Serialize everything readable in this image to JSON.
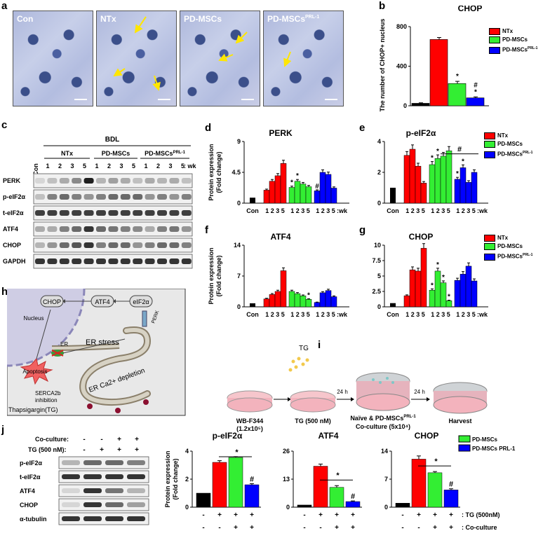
{
  "panels": {
    "a": "a",
    "b": "b",
    "c": "c",
    "d": "d",
    "e": "e",
    "f": "f",
    "g": "g",
    "h": "h",
    "i": "i",
    "j": "j"
  },
  "micro": {
    "labels": [
      "Con",
      "NTx",
      "PD-MSCs",
      "PD-MSCs"
    ],
    "sup": "PRL-1"
  },
  "legend": {
    "ntx": "NTx",
    "pd": "PD-MSCs",
    "prl": "PD-MSCs",
    "sup": "PRL-1"
  },
  "colors": {
    "con": "#000000",
    "ntx": "#ff0000",
    "pd": "#33ee33",
    "prl": "#0000ff"
  },
  "blot_c": {
    "bdl": "BDL",
    "groups": [
      "NTx",
      "PD-MSCs",
      "PD-MSCs"
    ],
    "sup": "PRL-1",
    "con": "Con",
    "weeks": [
      "1",
      "2",
      "3",
      "5",
      "1",
      "2",
      "3",
      "5",
      "1",
      "2",
      "3",
      "5"
    ],
    "wk": ": wk",
    "rows": [
      "PERK",
      "p-eIF2α",
      "t-eIF2α",
      "ATF4",
      "CHOP",
      "GAPDH"
    ]
  },
  "pathway": {
    "chop": "CHOP",
    "atf4": "ATF4",
    "eif2a": "eIF2α",
    "nucleus": "Nucleus",
    "perk": "PERK",
    "apoptosis": "Apoptosis",
    "er": "ER",
    "er_stress": "ER stress",
    "ca": "ER Ca2+ depletion",
    "serca": "SERCA2b",
    "inhibition": "inhibition",
    "tg": "Thapsigargin(TG)"
  },
  "scheme": {
    "tg": "TG",
    "h1": "24 h",
    "h2": "24 h",
    "s1a": "WB-F344",
    "s1b": "(1.2x10⁵)",
    "s2": "TG (500 nM)",
    "s3a": "Naïve & PD-MSCs",
    "s3sup": "PRL-1",
    "s3b": "Co-culture (5x10⁴)",
    "s4": "Harvest"
  },
  "blot_j": {
    "co": "Co-culture:",
    "tg": "TG (500 nM):",
    "co_signs": [
      "-",
      "-",
      "+",
      "+"
    ],
    "tg_signs": [
      "-",
      "+",
      "+",
      "+"
    ],
    "rows": [
      "p-eIF2α",
      "t-eIF2α",
      "ATF4",
      "CHOP",
      "α-tubulin"
    ]
  },
  "chart_data": [
    {
      "id": "b",
      "type": "bar",
      "title": "CHOP",
      "ylabel": "The number of CHOP+ nucleus",
      "ylim": [
        0,
        800
      ],
      "yticks": [
        "0",
        "400",
        "800"
      ],
      "categories": [
        "Con",
        "NTx",
        "PD-MSCs",
        "PD-MSCs PRL-1"
      ],
      "values": [
        25,
        670,
        225,
        80
      ],
      "errors": [
        5,
        20,
        22,
        10
      ],
      "annotations": [
        "",
        "",
        "*",
        "#\n*"
      ]
    },
    {
      "id": "d",
      "type": "bar",
      "title": "PERK",
      "ylabel": "Protein expression (Fold change)",
      "ylim": [
        0,
        9
      ],
      "yticks": [
        "0",
        "4.5",
        "9"
      ],
      "xlabels": [
        "Con",
        "1 2 3 5",
        "1 2 3 5",
        "1 2 3 5 : wk"
      ],
      "series": [
        {
          "name": "Con",
          "values": [
            0.8
          ]
        },
        {
          "name": "NTx",
          "values": [
            1.9,
            3.2,
            4.0,
            5.8
          ]
        },
        {
          "name": "PD-MSCs",
          "values": [
            2.3,
            3.2,
            2.8,
            2.4
          ]
        },
        {
          "name": "PD-MSCs PRL-1",
          "values": [
            1.8,
            4.5,
            4.2,
            2.2
          ]
        }
      ],
      "marks": {
        "pd": [
          "*",
          "*",
          "",
          ""
        ],
        "prl": [
          "#",
          "",
          "",
          ""
        ]
      }
    },
    {
      "id": "e",
      "type": "bar",
      "title": "p-eIF2α",
      "ylim": [
        0,
        4
      ],
      "yticks": [
        "0",
        "2",
        "4"
      ],
      "series": [
        {
          "name": "Con",
          "values": [
            1.0
          ]
        },
        {
          "name": "NTx",
          "values": [
            3.1,
            3.5,
            2.4,
            1.3
          ]
        },
        {
          "name": "PD-MSCs",
          "values": [
            2.5,
            2.9,
            3.05,
            3.4
          ]
        },
        {
          "name": "PD-MSCs PRL-1",
          "values": [
            1.55,
            2.3,
            1.35,
            2.0
          ]
        }
      ],
      "marks": {
        "pd": [
          "*",
          "*",
          "",
          ""
        ],
        "prl": [
          "*",
          "*",
          "",
          ""
        ]
      },
      "bracket": "#"
    },
    {
      "id": "f",
      "type": "bar",
      "title": "ATF4",
      "ylabel": "Protein expression (Fold change)",
      "ylim": [
        0,
        14
      ],
      "yticks": [
        "0",
        "7",
        "14"
      ],
      "series": [
        {
          "name": "Con",
          "values": [
            0.8
          ]
        },
        {
          "name": "NTx",
          "values": [
            1.8,
            2.8,
            3.5,
            8.2
          ]
        },
        {
          "name": "PD-MSCs",
          "values": [
            3.5,
            3.0,
            2.5,
            1.7
          ]
        },
        {
          "name": "PD-MSCs PRL-1",
          "values": [
            1.0,
            3.2,
            3.7,
            2.3
          ]
        }
      ],
      "marks": {
        "pd": [
          "",
          "",
          "",
          "*"
        ],
        "prl": [
          "",
          "",
          "",
          ""
        ]
      }
    },
    {
      "id": "g",
      "type": "bar",
      "title": "CHOP",
      "ylim": [
        0,
        10
      ],
      "yticks": [
        "0",
        "2.5",
        "5",
        "7.5",
        "10"
      ],
      "series": [
        {
          "name": "Con",
          "values": [
            0.6
          ]
        },
        {
          "name": "NTx",
          "values": [
            1.8,
            6.0,
            5.8,
            9.5
          ]
        },
        {
          "name": "PD-MSCs",
          "values": [
            2.7,
            5.8,
            3.9,
            1.0
          ]
        },
        {
          "name": "PD-MSCs PRL-1",
          "values": [
            4.3,
            5.3,
            6.6,
            4.2
          ]
        }
      ],
      "marks": {
        "pd": [
          "*",
          "*",
          "*",
          "*"
        ],
        "prl": [
          "",
          "",
          "",
          ""
        ]
      }
    },
    {
      "id": "j1",
      "type": "bar",
      "title": "p-eIF2α",
      "ylabel": "Protein expression (Fold change)",
      "ylim": [
        0,
        4
      ],
      "yticks": [
        "0",
        "2",
        "4"
      ],
      "values": [
        1.0,
        3.2,
        3.55,
        1.6
      ],
      "errors": [
        0,
        0.12,
        0.06,
        0.08
      ],
      "marks": [
        "",
        "",
        "",
        "#"
      ],
      "bracket": "*"
    },
    {
      "id": "j2",
      "type": "bar",
      "title": "ATF4",
      "ylim": [
        0,
        26
      ],
      "yticks": [
        "0",
        "13",
        "26"
      ],
      "values": [
        1.0,
        19.0,
        9.2,
        2.6
      ],
      "errors": [
        0,
        1.0,
        0.8,
        0.3
      ],
      "marks": [
        "",
        "",
        "",
        "#"
      ],
      "bracket": "*"
    },
    {
      "id": "j3",
      "type": "bar",
      "title": "CHOP",
      "ylim": [
        0,
        14
      ],
      "yticks": [
        "0",
        "7",
        "14"
      ],
      "values": [
        1.0,
        12.0,
        8.6,
        4.3
      ],
      "errors": [
        0,
        0.8,
        0.3,
        0.3
      ],
      "marks": [
        "",
        "",
        "",
        "#"
      ],
      "bracket": "*",
      "legend": [
        "PD-MSCs",
        "PD-MSCs PRL-1"
      ]
    }
  ],
  "j_axis": {
    "row1": [
      "-",
      "+",
      "+",
      "+"
    ],
    "row2": [
      "-",
      "-",
      "+",
      "+"
    ],
    "lab1": ": TG (500nM)",
    "lab2": ": Co-culture"
  }
}
